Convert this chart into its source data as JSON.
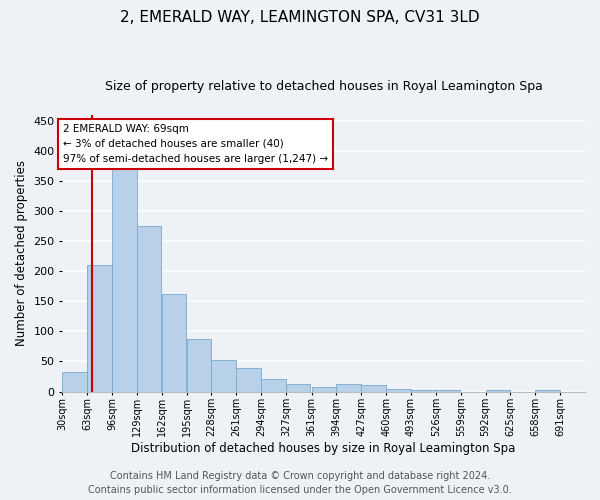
{
  "title": "2, EMERALD WAY, LEAMINGTON SPA, CV31 3LD",
  "subtitle": "Size of property relative to detached houses in Royal Leamington Spa",
  "xlabel": "Distribution of detached houses by size in Royal Leamington Spa",
  "ylabel": "Number of detached properties",
  "bar_color": "#b8d0e8",
  "bar_edge_color": "#7aaad0",
  "bar_heights": [
    33,
    210,
    378,
    275,
    163,
    88,
    52,
    39,
    21,
    12,
    8,
    13,
    11,
    5,
    3,
    2,
    0,
    3,
    0,
    2
  ],
  "bin_labels": [
    "30sqm",
    "63sqm",
    "96sqm",
    "129sqm",
    "162sqm",
    "195sqm",
    "228sqm",
    "261sqm",
    "294sqm",
    "327sqm",
    "361sqm",
    "394sqm",
    "427sqm",
    "460sqm",
    "493sqm",
    "526sqm",
    "559sqm",
    "592sqm",
    "625sqm",
    "658sqm",
    "691sqm"
  ],
  "bin_edges": [
    30,
    63,
    96,
    129,
    162,
    195,
    228,
    261,
    294,
    327,
    361,
    394,
    427,
    460,
    493,
    526,
    559,
    592,
    625,
    658,
    691
  ],
  "property_size": 69,
  "red_line_color": "#cc0000",
  "annotation_line1": "2 EMERALD WAY: 69sqm",
  "annotation_line2": "← 3% of detached houses are smaller (40)",
  "annotation_line3": "97% of semi-detached houses are larger (1,247) →",
  "annotation_box_color": "#ffffff",
  "annotation_box_edge_color": "#cc0000",
  "ylim": [
    0,
    460
  ],
  "yticks": [
    0,
    50,
    100,
    150,
    200,
    250,
    300,
    350,
    400,
    450
  ],
  "footer_line1": "Contains HM Land Registry data © Crown copyright and database right 2024.",
  "footer_line2": "Contains public sector information licensed under the Open Government Licence v3.0.",
  "background_color": "#eef2f7",
  "grid_color": "#ffffff",
  "title_fontsize": 11,
  "subtitle_fontsize": 9,
  "label_fontsize": 8.5,
  "footer_fontsize": 7,
  "tick_fontsize": 7,
  "ytick_fontsize": 8
}
